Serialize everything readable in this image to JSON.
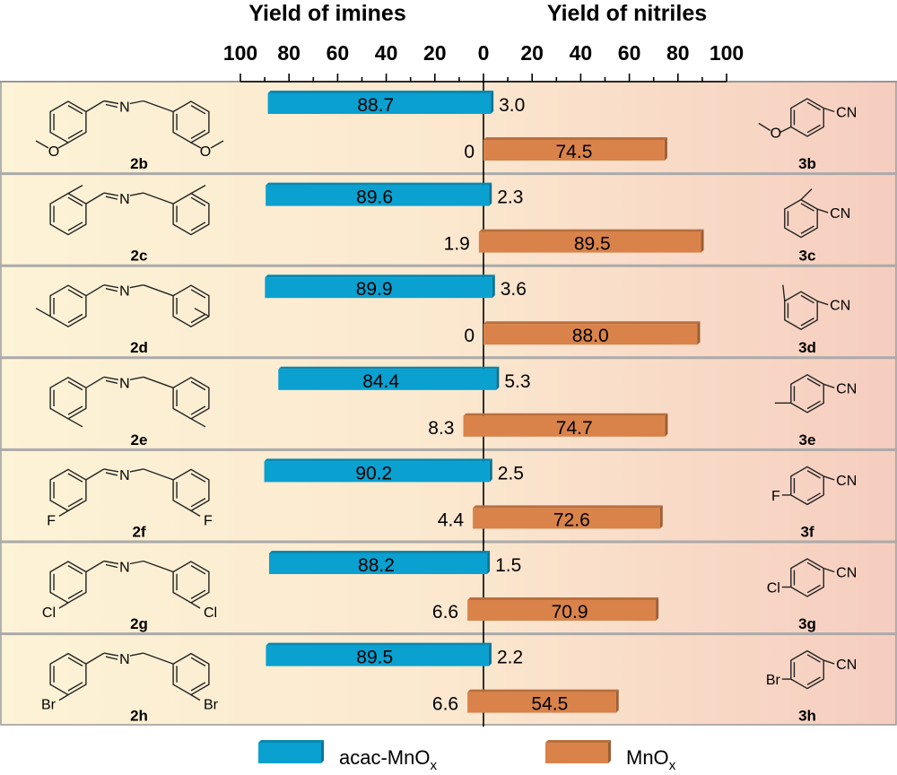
{
  "chart_data": {
    "type": "bar",
    "left_title": "Yield of imines",
    "right_title": "Yield of nitriles",
    "left_ticks": [
      "100",
      "80",
      "60",
      "40",
      "20",
      "0"
    ],
    "right_ticks": [
      "20",
      "40",
      "60",
      "80",
      "100"
    ],
    "axis_range": [
      0,
      100
    ],
    "series": [
      {
        "name": "acac-MnOx",
        "label_main": "acac-MnO",
        "label_sub": "x",
        "color": "#0aa0cf"
      },
      {
        "name": "MnOx",
        "label_main": "MnO",
        "label_sub": "x",
        "color": "#d9834a"
      }
    ],
    "groups": [
      {
        "imine": "2b",
        "nitrile": "3b",
        "imine_yield": [
          88.7,
          0
        ],
        "nitrile_yield": [
          3.0,
          74.5
        ],
        "imine_text": [
          "88.7",
          "0"
        ],
        "nitrile_text": [
          "3.0",
          "74.5"
        ],
        "sub": "OMe",
        "pos": "para"
      },
      {
        "imine": "2c",
        "nitrile": "3c",
        "imine_yield": [
          89.6,
          1.9
        ],
        "nitrile_yield": [
          2.3,
          89.5
        ],
        "imine_text": [
          "89.6",
          "1.9"
        ],
        "nitrile_text": [
          "2.3",
          "89.5"
        ],
        "sub": "Me",
        "pos": "ortho"
      },
      {
        "imine": "2d",
        "nitrile": "3d",
        "imine_yield": [
          89.9,
          0
        ],
        "nitrile_yield": [
          3.6,
          88.0
        ],
        "imine_text": [
          "89.9",
          "0"
        ],
        "nitrile_text": [
          "3.6",
          "88.0"
        ],
        "sub": "Me",
        "pos": "meta"
      },
      {
        "imine": "2e",
        "nitrile": "3e",
        "imine_yield": [
          84.4,
          8.3
        ],
        "nitrile_yield": [
          5.3,
          74.7
        ],
        "imine_text": [
          "84.4",
          "8.3"
        ],
        "nitrile_text": [
          "5.3",
          "74.7"
        ],
        "sub": "Me",
        "pos": "para"
      },
      {
        "imine": "2f",
        "nitrile": "3f",
        "imine_yield": [
          90.2,
          4.4
        ],
        "nitrile_yield": [
          2.5,
          72.6
        ],
        "imine_text": [
          "90.2",
          "4.4"
        ],
        "nitrile_text": [
          "2.5",
          "72.6"
        ],
        "sub": "F",
        "pos": "para"
      },
      {
        "imine": "2g",
        "nitrile": "3g",
        "imine_yield": [
          88.2,
          6.6
        ],
        "nitrile_yield": [
          1.5,
          70.9
        ],
        "imine_text": [
          "88.2",
          "6.6"
        ],
        "nitrile_text": [
          "1.5",
          "70.9"
        ],
        "sub": "Cl",
        "pos": "para"
      },
      {
        "imine": "2h",
        "nitrile": "3h",
        "imine_yield": [
          89.5,
          6.6
        ],
        "nitrile_yield": [
          2.2,
          54.5
        ],
        "imine_text": [
          "89.5",
          "6.6"
        ],
        "nitrile_text": [
          "2.2",
          "54.5"
        ],
        "sub": "Br",
        "pos": "para"
      }
    ],
    "atoms": {
      "N": "N",
      "O": "O",
      "CN": "CN"
    }
  }
}
